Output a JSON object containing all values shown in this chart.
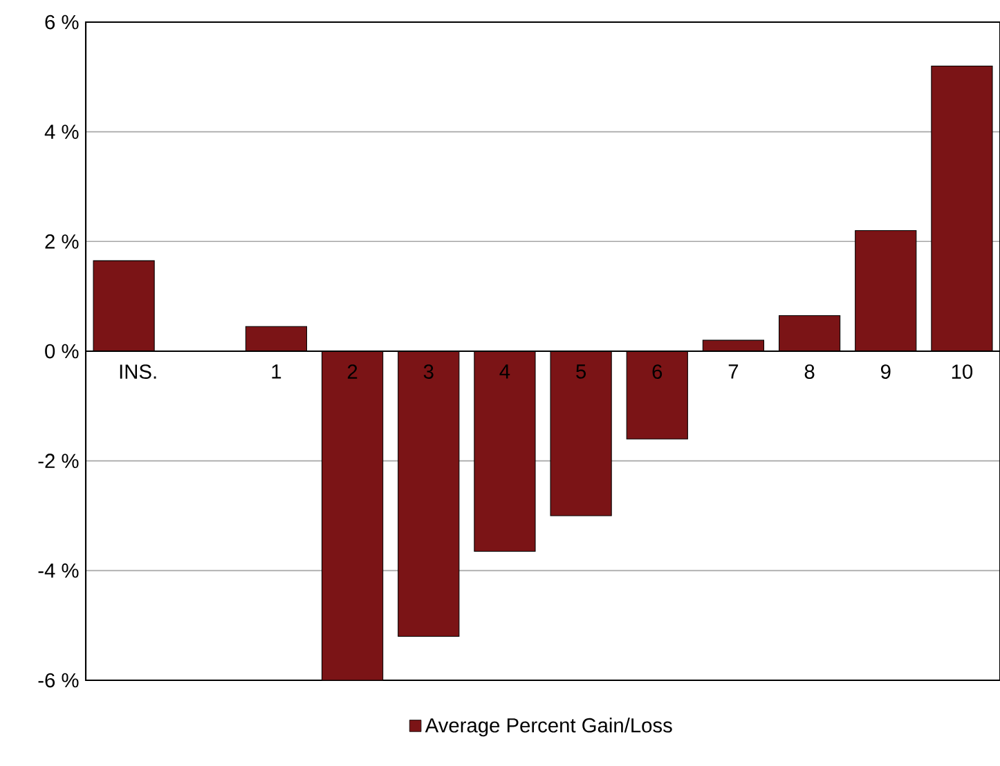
{
  "chart_data": {
    "type": "bar",
    "categories": [
      "INS.",
      null,
      "1",
      "2",
      "3",
      "4",
      "5",
      "6",
      "7",
      "8",
      "9",
      "10"
    ],
    "series": [
      {
        "name": "Average Percent Gain/Loss",
        "color": "#7b1416",
        "values": [
          1.65,
          null,
          0.45,
          -6.0,
          -5.2,
          -3.65,
          -3.0,
          -1.6,
          0.2,
          0.65,
          2.2,
          5.2
        ]
      }
    ],
    "ylim": [
      -6,
      6
    ],
    "yticks": [
      {
        "value": -6,
        "label": "-6 %"
      },
      {
        "value": -4,
        "label": "-4 %"
      },
      {
        "value": -2,
        "label": "-2 %"
      },
      {
        "value": 0,
        "label": "0 %"
      },
      {
        "value": 2,
        "label": "2 %"
      },
      {
        "value": 4,
        "label": "4 %"
      },
      {
        "value": 6,
        "label": "6 %"
      }
    ],
    "grid": "y",
    "legend": "bottom"
  }
}
